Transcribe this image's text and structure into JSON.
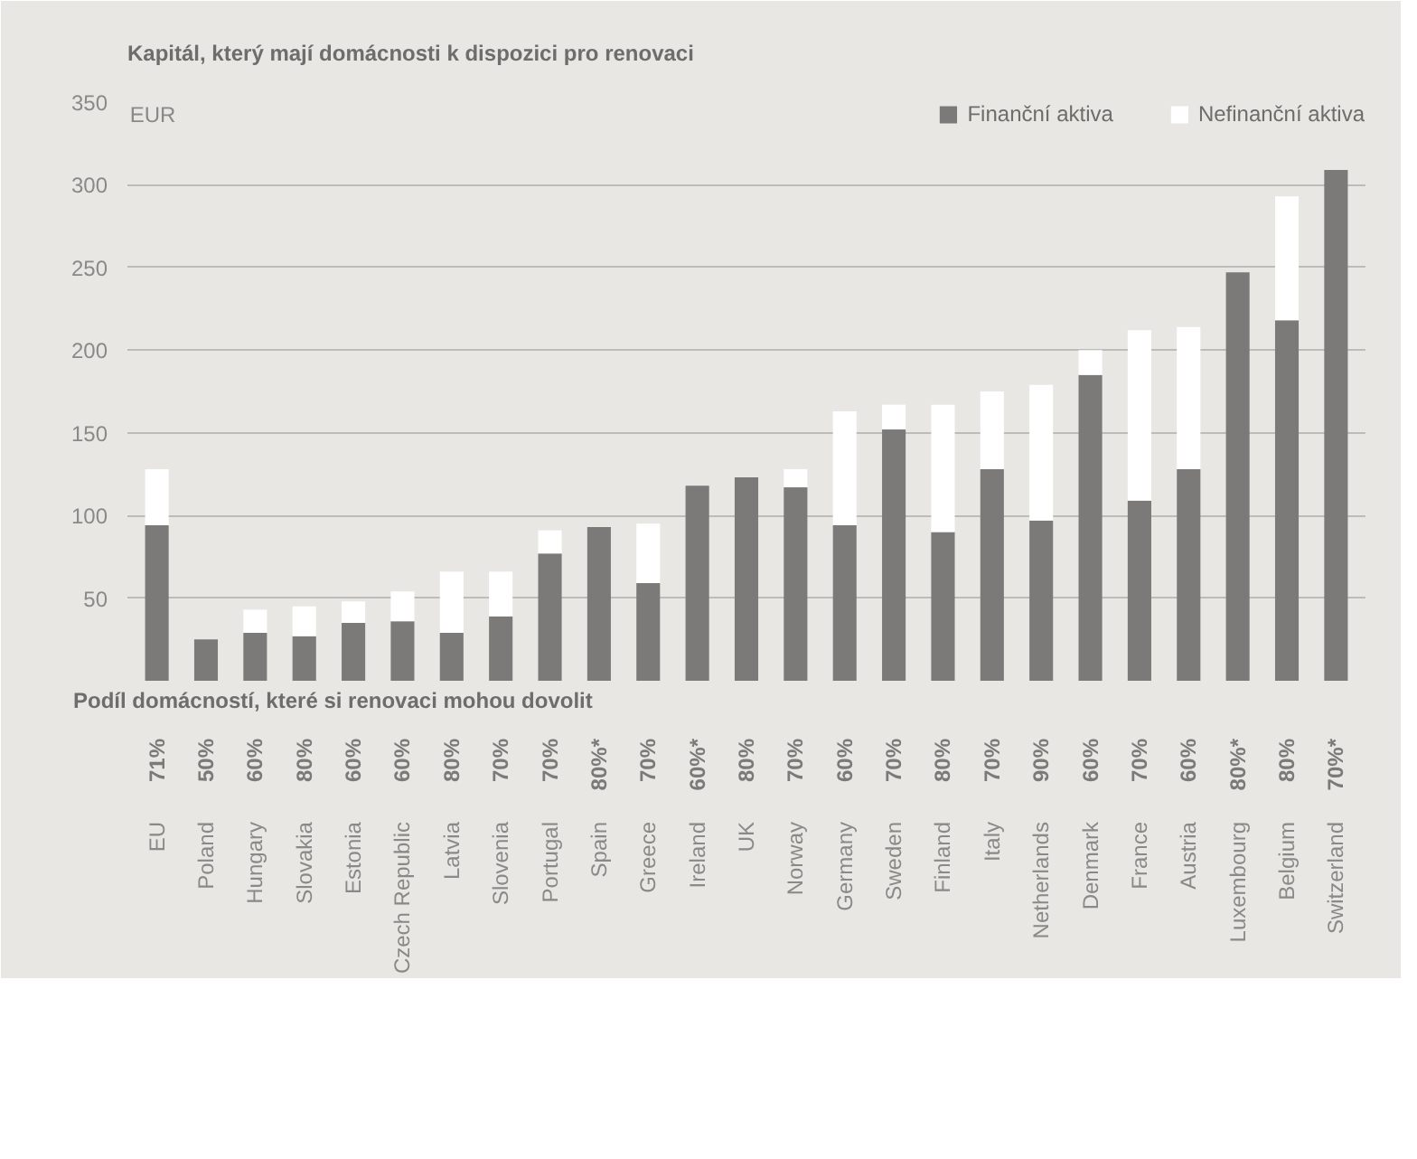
{
  "chart_data": {
    "type": "bar",
    "stacked": true,
    "title": "Kapitál, který mají domácnosti k dispozici pro renovaci",
    "ylabel": "EUR",
    "categories": [
      "EU",
      "Poland",
      "Hungary",
      "Slovakia",
      "Estonia",
      "Czech Republic",
      "Latvia",
      "Slovenia",
      "Portugal",
      "Spain",
      "Greece",
      "Ireland",
      "UK",
      "Norway",
      "Germany",
      "Sweden",
      "Finland",
      "Italy",
      "Netherlands",
      "Denmark",
      "France",
      "Austria",
      "Luxembourg",
      "Belgium",
      "Switzerland"
    ],
    "series": [
      {
        "name": "Finanční aktiva",
        "color": "#7b7a78",
        "values": [
          94,
          25,
          29,
          27,
          35,
          36,
          29,
          39,
          77,
          93,
          59,
          118,
          123,
          117,
          94,
          152,
          90,
          128,
          97,
          185,
          109,
          128,
          247,
          218,
          309
        ]
      },
      {
        "name": "Nefinanční aktiva",
        "color": "#ffffff",
        "values": [
          34,
          0,
          14,
          18,
          13,
          18,
          37,
          27,
          14,
          0,
          36,
          0,
          0,
          11,
          69,
          15,
          77,
          47,
          82,
          15,
          103,
          86,
          0,
          75,
          0
        ]
      }
    ],
    "ylim": [
      0,
      350
    ],
    "yticks": [
      50,
      100,
      150,
      200,
      250,
      300,
      350
    ],
    "grid": "y",
    "legend": "top right",
    "annotations": [
      "Podíl domácností, které si renovaci mohou dovolit",
      "71%",
      "50%",
      "60%",
      "80%",
      "60%",
      "60%",
      "80%",
      "70%",
      "70%",
      "80%*",
      "70%",
      "60%*",
      "80%",
      "70%",
      "60%",
      "70%",
      "80%",
      "70%",
      "90%",
      "60%",
      "70%",
      "60%",
      "80%*",
      "80%",
      "70%*"
    ]
  }
}
